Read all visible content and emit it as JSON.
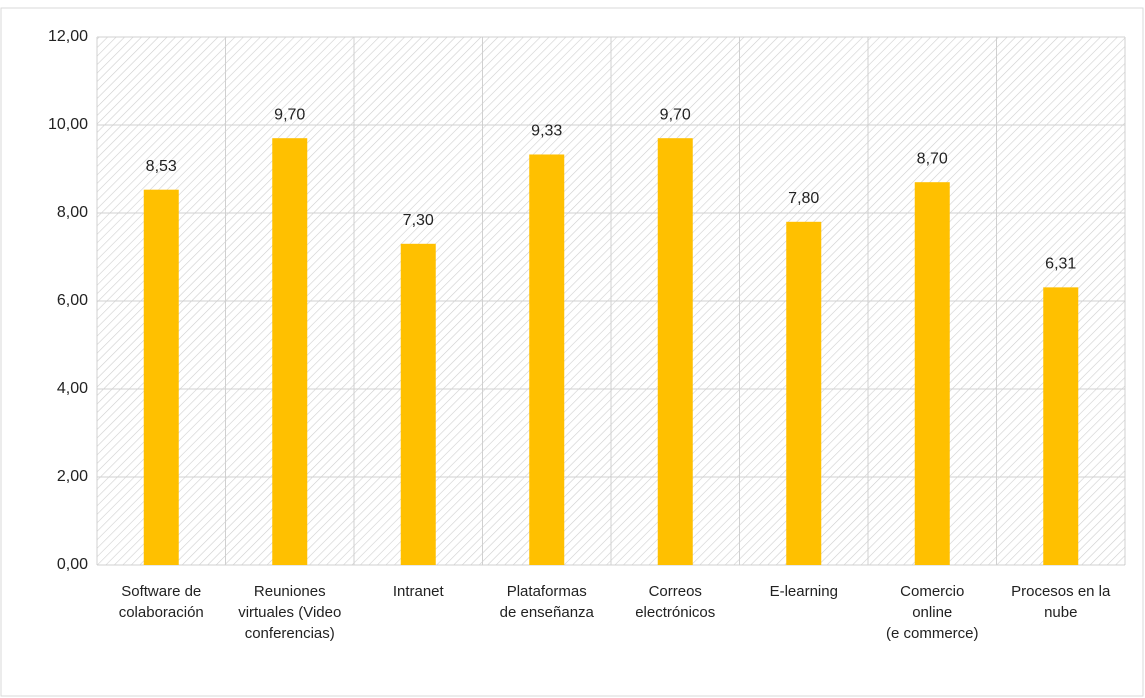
{
  "chart_data": {
    "type": "bar",
    "categories": [
      [
        "Software de",
        "colaboración"
      ],
      [
        "Reuniones",
        "virtuales (Video",
        "conferencias)"
      ],
      [
        "Intranet"
      ],
      [
        "Plataformas",
        "de enseñanza"
      ],
      [
        "Correos",
        "electrónicos"
      ],
      [
        "E-learning"
      ],
      [
        "Comercio",
        "online",
        "(e   commerce)"
      ],
      [
        "Procesos en la",
        "nube"
      ]
    ],
    "values": [
      8.53,
      9.7,
      7.3,
      9.33,
      9.7,
      7.8,
      8.7,
      6.31
    ],
    "value_labels": [
      "8,53",
      "9,70",
      "7,30",
      "9,33",
      "9,70",
      "7,80",
      "8,70",
      "6,31"
    ],
    "color": "#ffc000",
    "ylim": [
      0,
      12
    ],
    "yticks": [
      {
        "value": 0,
        "label": "0,00"
      },
      {
        "value": 2,
        "label": "2,00"
      },
      {
        "value": 4,
        "label": "4,00"
      },
      {
        "value": 6,
        "label": "6,00"
      },
      {
        "value": 8,
        "label": "8,00"
      },
      {
        "value": 10,
        "label": "10,00"
      },
      {
        "value": 12,
        "label": "12,00"
      }
    ],
    "grid": true
  }
}
